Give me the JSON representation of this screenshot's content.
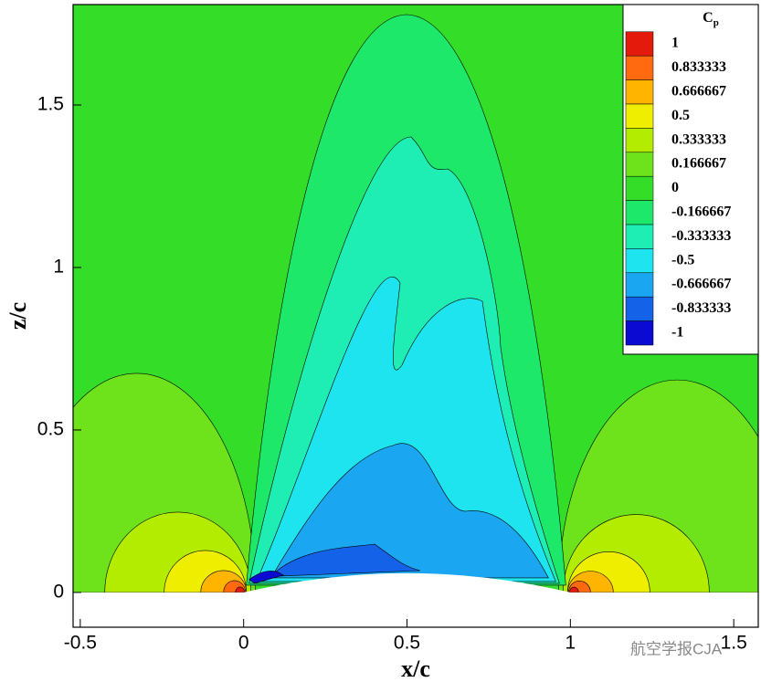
{
  "chart_data": {
    "type": "contour",
    "xlabel": "x/c",
    "ylabel": "z/c",
    "xlim": [
      -0.522,
      1.575
    ],
    "ylim": [
      -0.107,
      1.809
    ],
    "xticks": [
      -0.5,
      0,
      0.5,
      1,
      1.5
    ],
    "yticks": [
      0,
      0.5,
      1,
      1.5
    ],
    "legend_title": {
      "main": "C",
      "sub": "p"
    },
    "legend_position": "upper right",
    "levels": [
      1,
      0.833333,
      0.666667,
      0.5,
      0.333333,
      0.166667,
      0,
      -0.166667,
      -0.333333,
      -0.5,
      -0.666667,
      -0.833333,
      -1
    ],
    "colors": [
      "#e41a0c",
      "#ff6a10",
      "#ffb400",
      "#f0ee00",
      "#b4ec00",
      "#6ee21a",
      "#34de28",
      "#1ee86a",
      "#1eeeb4",
      "#1ee4f0",
      "#1aa6f0",
      "#1462e8",
      "#0a0ad2"
    ],
    "watermark": "航空学报CJA"
  }
}
